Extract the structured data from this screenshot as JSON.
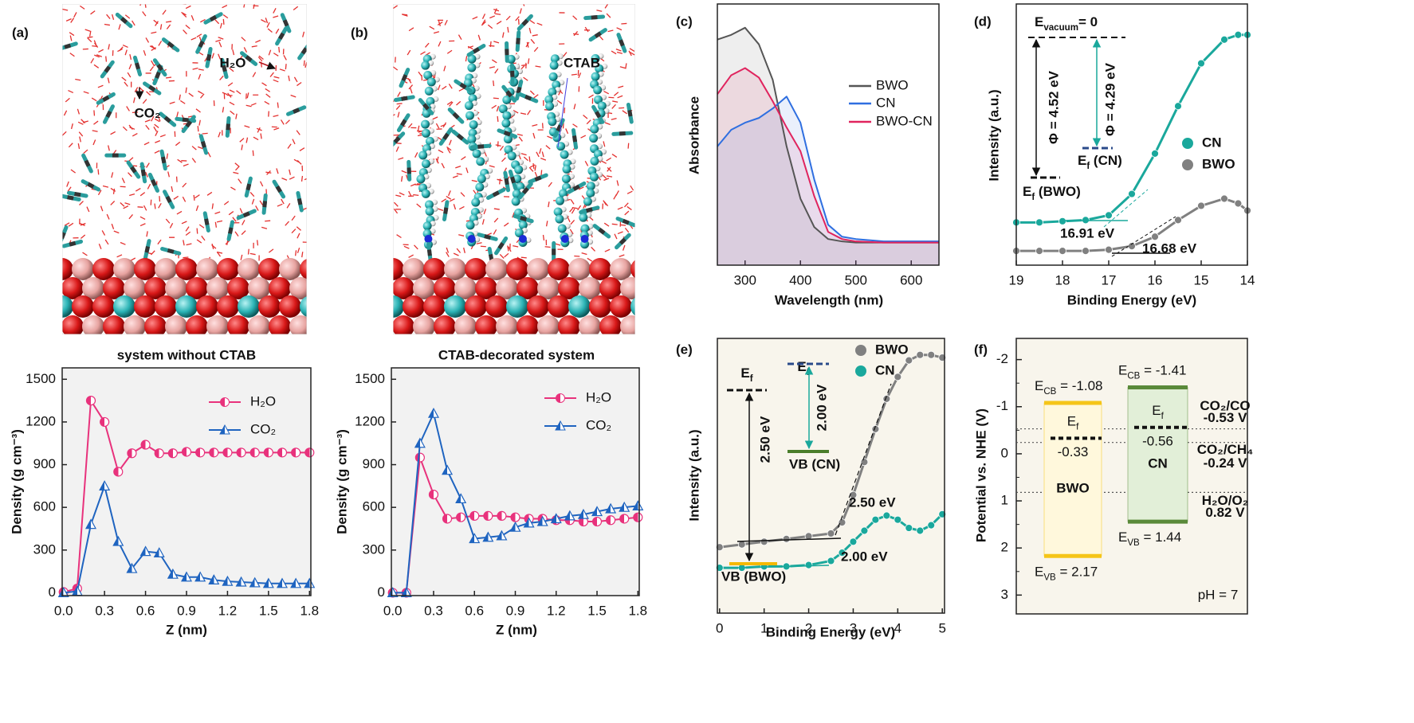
{
  "chart_data": [
    {
      "type": "line",
      "panel_label": "(a)",
      "snapshot_labels": [
        {
          "text": "H₂O",
          "color": "#b5121b"
        },
        {
          "text": "CO₂",
          "color": "#111111"
        }
      ],
      "title": "system without CTAB",
      "xlabel": "Z (nm)",
      "ylabel": "Density (g cm⁻³)",
      "background": "#f2f2f2",
      "x": [
        0,
        0.1,
        0.2,
        0.3,
        0.4,
        0.5,
        0.6,
        0.7,
        0.8,
        0.9,
        1,
        1.1,
        1.2,
        1.3,
        1.4,
        1.5,
        1.6,
        1.7,
        1.8
      ],
      "series": [
        {
          "name": "H₂O",
          "color": "#e8327c",
          "marker": "half-circle",
          "values": [
            5,
            30,
            1350,
            1200,
            850,
            980,
            1040,
            980,
            980,
            990,
            985,
            985,
            985,
            985,
            985,
            985,
            985,
            985,
            985
          ]
        },
        {
          "name": "CO₂",
          "color": "#1f64c0",
          "marker": "triangle",
          "values": [
            0,
            10,
            480,
            750,
            360,
            170,
            290,
            280,
            130,
            110,
            110,
            90,
            80,
            75,
            70,
            65,
            65,
            65,
            65
          ]
        }
      ],
      "xlim": [
        -0.01,
        1.81
      ],
      "xticks": [
        {
          "value": 0,
          "label": "0.0"
        },
        0.3,
        0.6,
        0.9,
        1.2,
        1.5,
        1.8
      ],
      "ylim": [
        -20,
        1580
      ],
      "yticks": [
        0,
        300,
        600,
        900,
        1200,
        1500
      ]
    },
    {
      "type": "line",
      "panel_label": "(b)",
      "snapshot_labels": [
        {
          "text": "CTAB",
          "color": "#2323d0"
        }
      ],
      "title": "CTAB-decorated system",
      "xlabel": "Z (nm)",
      "ylabel": "Density (g cm⁻³)",
      "background": "#f2f2f2",
      "x": [
        0,
        0.1,
        0.2,
        0.3,
        0.4,
        0.5,
        0.6,
        0.7,
        0.8,
        0.9,
        1,
        1.1,
        1.2,
        1.3,
        1.4,
        1.5,
        1.6,
        1.7,
        1.8
      ],
      "series": [
        {
          "name": "H₂O",
          "color": "#e8327c",
          "marker": "half-circle",
          "values": [
            0,
            0,
            950,
            690,
            520,
            530,
            540,
            540,
            540,
            530,
            520,
            520,
            510,
            510,
            500,
            500,
            510,
            520,
            530
          ]
        },
        {
          "name": "CO₂",
          "color": "#1f64c0",
          "marker": "triangle",
          "values": [
            0,
            0,
            1050,
            1260,
            860,
            660,
            380,
            390,
            400,
            460,
            490,
            500,
            520,
            540,
            550,
            570,
            590,
            600,
            610
          ]
        }
      ],
      "xlim": [
        -0.01,
        1.81
      ],
      "xticks": [
        {
          "value": 0,
          "label": "0.0"
        },
        0.3,
        0.6,
        0.9,
        1.2,
        1.5,
        1.8
      ],
      "ylim": [
        -20,
        1580
      ],
      "yticks": [
        0,
        300,
        600,
        900,
        1200,
        1500
      ]
    },
    {
      "type": "line",
      "panel_label": "(c)",
      "xlabel": "Wavelength (nm)",
      "ylabel": "Absorbance",
      "background": "#ffffff",
      "area": true,
      "x": [
        250,
        275,
        300,
        325,
        350,
        375,
        400,
        425,
        450,
        475,
        500,
        550,
        600,
        650
      ],
      "series": [
        {
          "name": "BWO",
          "color": "#555555",
          "values": [
            0.95,
            0.97,
            1.0,
            0.93,
            0.78,
            0.5,
            0.28,
            0.16,
            0.11,
            0.1,
            0.095,
            0.095,
            0.095,
            0.095
          ]
        },
        {
          "name": "CN",
          "color": "#2f6fe0",
          "values": [
            0.5,
            0.57,
            0.6,
            0.62,
            0.66,
            0.71,
            0.6,
            0.36,
            0.17,
            0.12,
            0.11,
            0.1,
            0.1,
            0.1
          ]
        },
        {
          "name": "BWO-CN",
          "color": "#e0245e",
          "values": [
            0.72,
            0.8,
            0.83,
            0.79,
            0.69,
            0.58,
            0.48,
            0.29,
            0.14,
            0.11,
            0.1,
            0.095,
            0.095,
            0.095
          ]
        }
      ],
      "xlim": [
        250,
        650
      ],
      "xticks": [
        300,
        400,
        500,
        600
      ],
      "ylim": [
        0,
        1.1
      ]
    },
    {
      "type": "line",
      "panel_label": "(d)",
      "xlabel": "Binding Energy (eV)",
      "ylabel": "Intensity (a.u.)",
      "background": "#ffffff",
      "x": [
        19,
        18.5,
        18,
        17.5,
        17,
        16.5,
        16,
        15.5,
        15,
        14.5,
        14.2,
        14
      ],
      "series": [
        {
          "name": "CN",
          "color": "#1aa89c",
          "marker": "dot",
          "values": [
            0.18,
            0.18,
            0.185,
            0.19,
            0.21,
            0.3,
            0.47,
            0.67,
            0.85,
            0.95,
            0.97,
            0.97
          ]
        },
        {
          "name": "BWO",
          "color": "#808080",
          "marker": "dot",
          "values": [
            0.06,
            0.06,
            0.06,
            0.06,
            0.065,
            0.08,
            0.12,
            0.19,
            0.25,
            0.28,
            0.26,
            0.23
          ]
        }
      ],
      "annotations": [
        {
          "text": {
            "main": "E",
            "sub": "vacuum",
            "tail": "= 0"
          },
          "color": "#111111"
        },
        {
          "text": "Φ = 4.52 eV",
          "color": "#111111"
        },
        {
          "text": "Φ = 4.29 eV",
          "color": "#1aa89c"
        },
        {
          "text": {
            "main": "E",
            "sub": "f",
            "tail": " (CN)"
          },
          "color": "#1aa89c"
        },
        {
          "text": {
            "main": "E",
            "sub": "f",
            "tail": " (BWO)"
          },
          "color": "#111111"
        },
        {
          "text": "16.91 eV",
          "color": "#1aa89c"
        },
        {
          "text": "16.68 eV",
          "color": "#111111"
        }
      ],
      "xlim": [
        19,
        14
      ],
      "xticks": [
        19,
        18,
        17,
        16,
        15,
        14
      ],
      "ylim": [
        0,
        1.1
      ]
    },
    {
      "type": "line",
      "panel_label": "(e)",
      "xlabel": "Binding Energy (eV)",
      "ylabel": "Intensity (a.u.)",
      "background": "#f8f5ec",
      "x": [
        0,
        0.5,
        1,
        1.5,
        2,
        2.5,
        2.75,
        3,
        3.25,
        3.5,
        3.75,
        4,
        4.25,
        4.5,
        4.75,
        5
      ],
      "series": [
        {
          "name": "BWO",
          "color": "#808080",
          "marker": "dot",
          "values": [
            0.24,
            0.25,
            0.26,
            0.27,
            0.28,
            0.29,
            0.33,
            0.43,
            0.55,
            0.67,
            0.78,
            0.86,
            0.92,
            0.94,
            0.94,
            0.93
          ]
        },
        {
          "name": "CN",
          "color": "#1aa89c",
          "marker": "dot",
          "values": [
            0.165,
            0.165,
            0.17,
            0.17,
            0.175,
            0.19,
            0.22,
            0.26,
            0.3,
            0.34,
            0.355,
            0.34,
            0.31,
            0.3,
            0.32,
            0.36
          ]
        }
      ],
      "annotations": [
        {
          "text": "2.50 eV",
          "color": "#111111"
        },
        {
          "text": "2.00 eV",
          "color": "#1aa89c"
        },
        {
          "text": {
            "main": "E",
            "sub": "f"
          },
          "color": "#111111"
        },
        {
          "text": "2.50 eV",
          "color": "#111111"
        },
        {
          "text": "VB (BWO)",
          "color": "#111111"
        },
        {
          "text": {
            "main": "E",
            "sub": "f"
          },
          "color": "#1aa89c"
        },
        {
          "text": "2.00 eV",
          "color": "#1aa89c"
        },
        {
          "text": "VB (CN)",
          "color": "#1aa89c"
        }
      ],
      "xlim": [
        -0.05,
        5.05
      ],
      "xticks": [
        0,
        1,
        2,
        3,
        4,
        5
      ],
      "ylim": [
        0,
        1
      ]
    },
    {
      "type": "band-diagram",
      "panel_label": "(f)",
      "ylabel": "Potential vs. NHE (V)",
      "background": "#f8f5ec",
      "ylim": [
        3.4,
        -2.45
      ],
      "yticks": [
        -2,
        -1,
        0,
        1,
        2,
        3
      ],
      "bands": [
        {
          "name": "BWO",
          "cb": -1.08,
          "vb": 2.17,
          "ef": -0.33,
          "color": "#f5c518",
          "fill": "#fff8dc",
          "label_color": "#111111",
          "cb_label": {
            "main": "E",
            "sub": "CB",
            "tail": " = -1.08"
          },
          "vb_label": {
            "main": "E",
            "sub": "VB",
            "tail": " = 2.17"
          },
          "ef_label": {
            "main": "E",
            "sub": "f"
          }
        },
        {
          "name": "CN",
          "cb": -1.41,
          "vb": 1.44,
          "ef": -0.56,
          "color": "#5a8a3a",
          "fill": "#e2efd8",
          "label_color": "#1f64c0",
          "cb_label": {
            "main": "E",
            "sub": "CB",
            "tail": " = -1.41"
          },
          "vb_label": {
            "main": "E",
            "sub": "VB",
            "tail": " = 1.44"
          },
          "ef_label": {
            "main": "E",
            "sub": "f"
          }
        }
      ],
      "references": [
        {
          "name": "CO₂/CO",
          "value": -0.53,
          "value_label": "-0.53 V",
          "color": "#3a6b1f"
        },
        {
          "name": "CO₂/CH₄",
          "value": -0.24,
          "value_label": "-0.24 V",
          "color": "#222222"
        },
        {
          "name": "H₂O/O₂",
          "value": 0.82,
          "value_label": "0.82 V",
          "color": "#7a1f2a"
        }
      ],
      "note": "pH = 7"
    }
  ]
}
